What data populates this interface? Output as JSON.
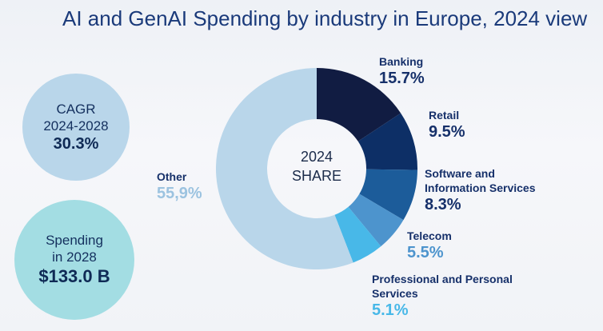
{
  "title": "AI and GenAI Spending by industry in Europe, 2024 view",
  "cagr": {
    "label_line1": "CAGR",
    "label_line2": "2024-2028",
    "value": "30.3%"
  },
  "spending": {
    "label_line1": "Spending",
    "label_line2": "in 2028",
    "value": "$133.0 B"
  },
  "center": {
    "line1": "2024",
    "line2": "SHARE"
  },
  "colors": {
    "banking": "#111c42",
    "retail": "#0d2f66",
    "software": "#1c5c9a",
    "telecom": "#4d94cd",
    "professional": "#48b8e8",
    "other": "#b9d6ea"
  },
  "chart_data": {
    "type": "pie",
    "donut": true,
    "categories": [
      "Banking",
      "Retail",
      "Software and Information Services",
      "Telecom",
      "Professional and Personal Services",
      "Other"
    ],
    "values": [
      15.7,
      9.5,
      8.3,
      5.5,
      5.1,
      55.9
    ],
    "labels": {
      "banking": {
        "name": "Banking",
        "pct": "15.7%"
      },
      "retail": {
        "name": "Retail",
        "pct": "9.5%"
      },
      "software": {
        "name_line1": "Software and",
        "name_line2": "Information Services",
        "pct": "8.3%"
      },
      "telecom": {
        "name": "Telecom",
        "pct": "5.5%"
      },
      "professional": {
        "name_line1": "Professional and Personal",
        "name_line2": "Services",
        "pct": "5.1%"
      },
      "other": {
        "name": "Other",
        "pct": "55,9%"
      }
    }
  }
}
